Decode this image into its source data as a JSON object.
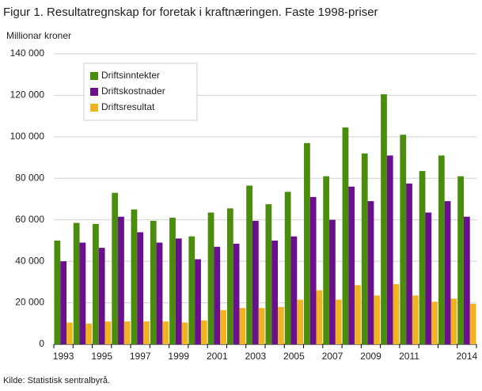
{
  "chart_data": {
    "type": "bar",
    "title": "Figur 1. Resultatregnskap for foretak i kraftnæringen. Faste 1998-priser",
    "y_label": "Millionar  kroner",
    "source": "Kilde: Statistisk sentralbyrå.",
    "categories": [
      "1993",
      null,
      "1995",
      null,
      "1997",
      null,
      "1999",
      null,
      "2001",
      null,
      "2003",
      null,
      "2005",
      null,
      "2007",
      null,
      "2009",
      null,
      "2011",
      null,
      null,
      "2014"
    ],
    "series": [
      {
        "name": "Driftsinntekter",
        "color": "#4a8c0c",
        "values": [
          50000,
          58500,
          58000,
          73000,
          65000,
          59500,
          61000,
          52000,
          63500,
          65500,
          76500,
          67500,
          73500,
          97000,
          81000,
          104500,
          92000,
          120500,
          101000,
          83500,
          91000,
          81000
        ]
      },
      {
        "name": "Driftskostnader",
        "color": "#6a108e",
        "values": [
          40000,
          49000,
          46500,
          61500,
          54000,
          49000,
          51000,
          41000,
          47000,
          48500,
          59500,
          50000,
          52000,
          71000,
          60000,
          76000,
          69000,
          91000,
          77500,
          63500,
          69000,
          61500
        ]
      },
      {
        "name": "Driftsresultat",
        "color": "#f0b323",
        "values": [
          10500,
          10000,
          11000,
          11000,
          11000,
          11000,
          10500,
          11500,
          16500,
          17500,
          17500,
          18000,
          21500,
          26000,
          21500,
          28500,
          23500,
          29000,
          23500,
          20500,
          22000,
          19500
        ]
      }
    ],
    "ylim": [
      0,
      140000
    ],
    "yticks": [
      0,
      {
        "value": 20000,
        "label": "20 000"
      },
      {
        "value": 40000,
        "label": "40 000"
      },
      {
        "value": 60000,
        "label": "60 000"
      },
      {
        "value": 80000,
        "label": "80 000"
      },
      {
        "value": 100000,
        "label": "100 000"
      },
      {
        "value": 120000,
        "label": "120 000"
      },
      {
        "value": 140000,
        "label": "140 000"
      }
    ],
    "grid": true,
    "legend": "upper left"
  }
}
